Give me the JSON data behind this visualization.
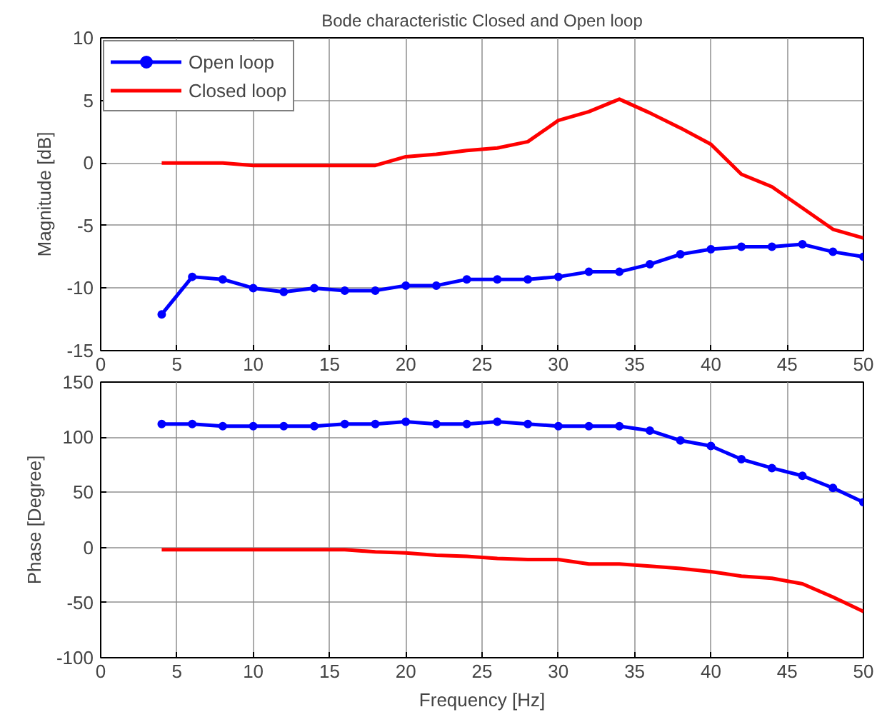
{
  "chart_data": [
    {
      "type": "line",
      "title": "Bode characteristic Closed and Open loop",
      "ylabel": "Magnitude [dB]",
      "x": [
        4,
        6,
        8,
        10,
        12,
        14,
        16,
        18,
        20,
        22,
        24,
        26,
        28,
        30,
        32,
        34,
        36,
        38,
        40,
        42,
        44,
        46,
        48,
        50
      ],
      "xlim": [
        0,
        50
      ],
      "xticks": [
        0,
        5,
        10,
        15,
        20,
        25,
        30,
        35,
        40,
        45,
        50
      ],
      "ylim": [
        -15,
        10
      ],
      "yticks": [
        -15,
        -10,
        -5,
        0,
        5,
        10
      ],
      "grid": true,
      "legend": "top left",
      "series": [
        {
          "name": "Open loop",
          "color": "#0000ff",
          "marker": "circle",
          "values": [
            -12.1,
            -9.1,
            -9.3,
            -10,
            -10.3,
            -10,
            -10.2,
            -10.2,
            -9.8,
            -9.8,
            -9.3,
            -9.3,
            -9.3,
            -9.1,
            -8.7,
            -8.7,
            -8.1,
            -7.3,
            -6.9,
            -6.7,
            -6.7,
            -6.5,
            -7.1,
            -7.5
          ]
        },
        {
          "name": "Closed loop",
          "color": "#ff0000",
          "marker": "none",
          "values": [
            0,
            0,
            0,
            -0.2,
            -0.2,
            -0.2,
            -0.2,
            -0.2,
            0.5,
            0.7,
            1.0,
            1.2,
            1.7,
            3.4,
            4.1,
            5.1,
            4.0,
            2.8,
            1.5,
            -0.9,
            -1.9,
            -3.6,
            -5.3,
            -6.0
          ]
        }
      ]
    },
    {
      "type": "line",
      "xlabel": "Frequency [Hz]",
      "ylabel": "Phase [Degree]",
      "x": [
        4,
        6,
        8,
        10,
        12,
        14,
        16,
        18,
        20,
        22,
        24,
        26,
        28,
        30,
        32,
        34,
        36,
        38,
        40,
        42,
        44,
        46,
        48,
        50
      ],
      "xlim": [
        0,
        50
      ],
      "xticks": [
        0,
        5,
        10,
        15,
        20,
        25,
        30,
        35,
        40,
        45,
        50
      ],
      "ylim": [
        -100,
        150
      ],
      "yticks": [
        -100,
        -50,
        0,
        50,
        100,
        150
      ],
      "grid": true,
      "series": [
        {
          "color": "#0000ff",
          "marker": "circle",
          "values": [
            112,
            112,
            110,
            110,
            110,
            110,
            112,
            112,
            114,
            112,
            112,
            114,
            112,
            110,
            110,
            110,
            106,
            97,
            92,
            80,
            72,
            65,
            54,
            41
          ]
        },
        {
          "color": "#ff0000",
          "marker": "none",
          "values": [
            -2,
            -2,
            -2,
            -2,
            -2,
            -2,
            -2,
            -4,
            -5,
            -7,
            -8,
            -10,
            -11,
            -11,
            -15,
            -15,
            -17,
            -19,
            -22,
            -26,
            -28,
            -33,
            -45,
            -58
          ]
        }
      ]
    }
  ]
}
